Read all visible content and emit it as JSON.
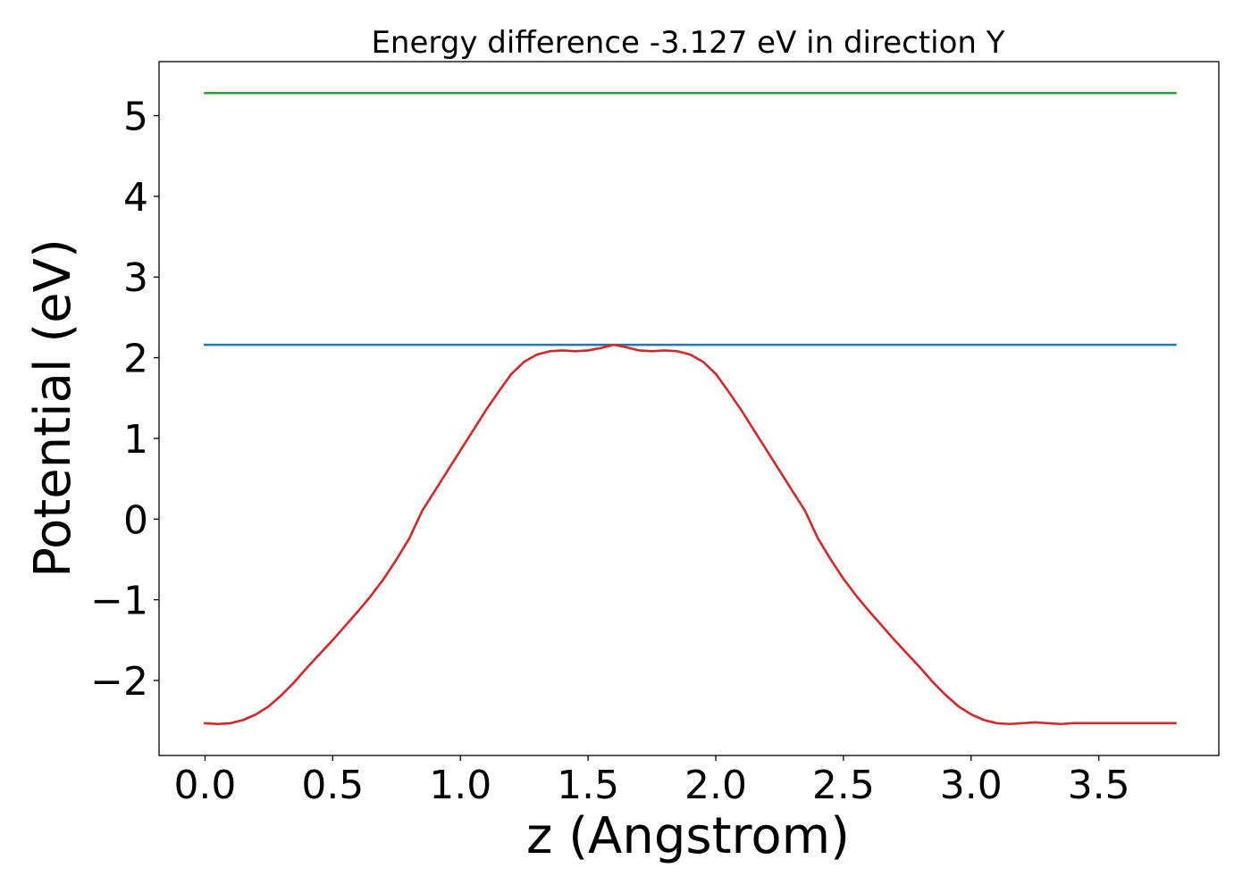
{
  "chart_data": {
    "type": "line",
    "title": "Energy difference -3.127 eV in direction Y",
    "xlabel": "z (Angstrom)",
    "ylabel": "Potential (eV)",
    "xlim": [
      -0.18,
      3.97
    ],
    "ylim": [
      -2.93,
      5.67
    ],
    "xticks": [
      0.0,
      0.5,
      1.0,
      1.5,
      2.0,
      2.5,
      3.0,
      3.5
    ],
    "xtick_labels": [
      "0.0",
      "0.5",
      "1.0",
      "1.5",
      "2.0",
      "2.5",
      "3.0",
      "3.5"
    ],
    "yticks": [
      -2,
      -1,
      0,
      1,
      2,
      3,
      4,
      5
    ],
    "ytick_labels": [
      "−2",
      "−1",
      "0",
      "1",
      "2",
      "3",
      "4",
      "5"
    ],
    "grid": false,
    "series": [
      {
        "color": "#2ca02c",
        "x": [
          0.0,
          3.8
        ],
        "y": [
          5.28,
          5.28
        ]
      },
      {
        "color": "#1f77b4",
        "x": [
          0.0,
          3.8
        ],
        "y": [
          2.16,
          2.16
        ]
      },
      {
        "color": "#d62728",
        "x": [
          0.0,
          0.05,
          0.1,
          0.15,
          0.2,
          0.25,
          0.3,
          0.35,
          0.4,
          0.45,
          0.5,
          0.55,
          0.6,
          0.65,
          0.7,
          0.75,
          0.8,
          0.85,
          0.9,
          0.95,
          1.0,
          1.05,
          1.1,
          1.15,
          1.2,
          1.25,
          1.3,
          1.35,
          1.4,
          1.45,
          1.5,
          1.55,
          1.6,
          1.65,
          1.7,
          1.75,
          1.8,
          1.85,
          1.9,
          1.95,
          2.0,
          2.05,
          2.1,
          2.15,
          2.2,
          2.25,
          2.3,
          2.35,
          2.4,
          2.45,
          2.5,
          2.55,
          2.6,
          2.65,
          2.7,
          2.75,
          2.8,
          2.85,
          2.9,
          2.95,
          3.0,
          3.05,
          3.1,
          3.15,
          3.2,
          3.25,
          3.3,
          3.35,
          3.4,
          3.45,
          3.5,
          3.55,
          3.6,
          3.65,
          3.7,
          3.75,
          3.8
        ],
        "y": [
          -2.53,
          -2.54,
          -2.53,
          -2.49,
          -2.42,
          -2.32,
          -2.18,
          -2.02,
          -1.84,
          -1.67,
          -1.5,
          -1.32,
          -1.14,
          -0.95,
          -0.74,
          -0.5,
          -0.24,
          0.1,
          0.35,
          0.6,
          0.85,
          1.1,
          1.35,
          1.58,
          1.8,
          1.95,
          2.04,
          2.08,
          2.09,
          2.08,
          2.09,
          2.12,
          2.16,
          2.13,
          2.09,
          2.08,
          2.09,
          2.08,
          2.04,
          1.95,
          1.8,
          1.58,
          1.35,
          1.1,
          0.85,
          0.6,
          0.35,
          0.1,
          -0.24,
          -0.5,
          -0.74,
          -0.95,
          -1.14,
          -1.32,
          -1.5,
          -1.67,
          -1.84,
          -2.02,
          -2.18,
          -2.32,
          -2.42,
          -2.49,
          -2.53,
          -2.54,
          -2.53,
          -2.52,
          -2.53,
          -2.54,
          -2.53,
          -2.53,
          -2.53,
          -2.53,
          -2.53,
          -2.53,
          -2.53,
          -2.53,
          -2.53
        ]
      }
    ]
  }
}
